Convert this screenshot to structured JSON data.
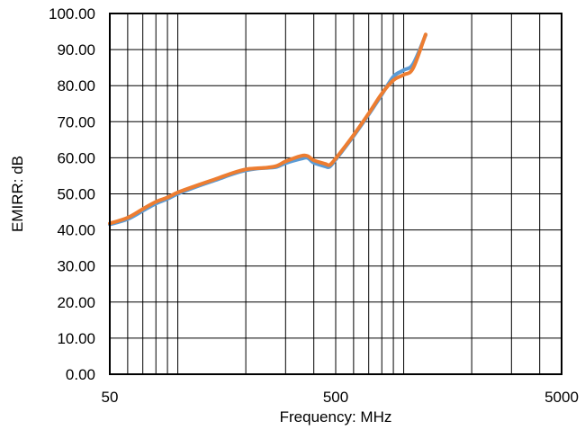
{
  "chart_data": {
    "type": "line",
    "title": "",
    "xlabel": "Frequency: MHz",
    "ylabel": "EMIRR: dB",
    "xscale": "log",
    "xlim": [
      50,
      5000
    ],
    "ylim": [
      0,
      100
    ],
    "grid": true,
    "x_tick_labels": [
      "50",
      "500",
      "5000"
    ],
    "y_tick_labels": [
      "0.00",
      "10.00",
      "20.00",
      "30.00",
      "40.00",
      "50.00",
      "60.00",
      "70.00",
      "80.00",
      "90.00",
      "100.00"
    ],
    "series": [
      {
        "name": "",
        "color": "#5B9BD5",
        "points": [
          [
            50,
            41.5
          ],
          [
            60,
            43
          ],
          [
            70,
            45.3
          ],
          [
            80,
            47.3
          ],
          [
            90,
            48.6
          ],
          [
            100,
            50
          ],
          [
            125,
            52.3
          ],
          [
            150,
            54
          ],
          [
            175,
            55.5
          ],
          [
            200,
            56.5
          ],
          [
            225,
            57
          ],
          [
            250,
            57.2
          ],
          [
            275,
            57.5
          ],
          [
            300,
            58.5
          ],
          [
            350,
            59.7
          ],
          [
            375,
            60
          ],
          [
            400,
            58.6
          ],
          [
            450,
            57.6
          ],
          [
            470,
            57.5
          ],
          [
            500,
            59.5
          ],
          [
            600,
            66
          ],
          [
            700,
            72
          ],
          [
            800,
            77.5
          ],
          [
            900,
            82.5
          ],
          [
            1000,
            84.3
          ],
          [
            1100,
            86
          ],
          [
            1250,
            94
          ]
        ]
      },
      {
        "name": "",
        "color": "#ED7D31",
        "points": [
          [
            50,
            41.8
          ],
          [
            60,
            43.4
          ],
          [
            70,
            45.8
          ],
          [
            80,
            47.8
          ],
          [
            90,
            49
          ],
          [
            100,
            50.4
          ],
          [
            125,
            52.6
          ],
          [
            150,
            54.3
          ],
          [
            175,
            55.8
          ],
          [
            200,
            56.8
          ],
          [
            225,
            57.1
          ],
          [
            250,
            57.3
          ],
          [
            275,
            57.8
          ],
          [
            300,
            59
          ],
          [
            350,
            60.5
          ],
          [
            375,
            60.5
          ],
          [
            400,
            59.3
          ],
          [
            450,
            58.3
          ],
          [
            470,
            58
          ],
          [
            500,
            59.8
          ],
          [
            600,
            66.3
          ],
          [
            700,
            72.3
          ],
          [
            800,
            77.8
          ],
          [
            900,
            81.5
          ],
          [
            1000,
            83
          ],
          [
            1100,
            84.8
          ],
          [
            1250,
            94.2
          ]
        ]
      }
    ]
  }
}
